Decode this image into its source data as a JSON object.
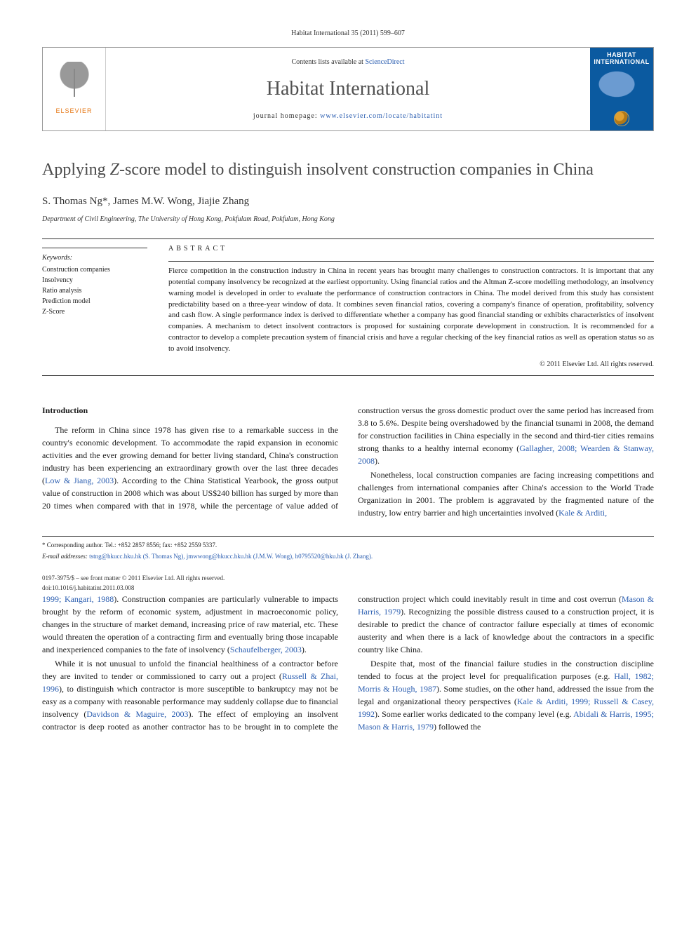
{
  "page_header": "Habitat International 35 (2011) 599–607",
  "banner": {
    "publisher": "ELSEVIER",
    "contents_prefix": "Contents lists available at ",
    "contents_link": "ScienceDirect",
    "journal_name": "Habitat International",
    "homepage_prefix": "journal homepage: ",
    "homepage_link": "www.elsevier.com/locate/habitatint",
    "cover_title": "HABITAT",
    "cover_subtitle": "INTERNATIONAL"
  },
  "title_pre": "Applying ",
  "title_italic": "Z",
  "title_post": "-score model to distinguish insolvent construction companies in China",
  "authors": "S. Thomas Ng*, James M.W. Wong, Jiajie Zhang",
  "affiliation": "Department of Civil Engineering, The University of Hong Kong, Pokfulam Road, Pokfulam, Hong Kong",
  "keywords_head": "Keywords:",
  "keywords": [
    "Construction companies",
    "Insolvency",
    "Ratio analysis",
    "Prediction model",
    "Z-Score"
  ],
  "abstract_head": "ABSTRACT",
  "abstract_text": "Fierce competition in the construction industry in China in recent years has brought many challenges to construction contractors. It is important that any potential company insolvency be recognized at the earliest opportunity. Using financial ratios and the Altman Z-score modelling methodology, an insolvency warning model is developed in order to evaluate the performance of construction contractors in China. The model derived from this study has consistent predictability based on a three-year window of data. It combines seven financial ratios, covering a company's finance of operation, profitability, solvency and cash flow. A single performance index is derived to differentiate whether a company has good financial standing or exhibits characteristics of insolvent companies. A mechanism to detect insolvent contractors is proposed for sustaining corporate development in construction. It is recommended for a contractor to develop a complete precaution system of financial crisis and have a regular checking of the key financial ratios as well as operation status so as to avoid insolvency.",
  "copyright": "© 2011 Elsevier Ltd. All rights reserved.",
  "intro_head": "Introduction",
  "para1_a": "The reform in China since 1978 has given rise to a remarkable success in the country's economic development. To accommodate the rapid expansion in economic activities and the ever growing demand for better living standard, China's construction industry has been experiencing an extraordinary growth over the last three decades (",
  "para1_c1": "Low & Jiang, 2003",
  "para1_b": "). According to the China Statistical Yearbook, the gross output value of construction in 2008 which was about US$240 billion has surged by more than 20 times when compared with that in 1978, while the percentage of value added of construction versus the gross domestic product over the same period has increased from 3.8 to 5.6%. Despite being overshadowed by the financial tsunami in 2008, the demand for construction facilities in China especially in the second and third-tier cities remains strong thanks to a healthy internal economy (",
  "para1_c2": "Gallagher, 2008; Wearden & Stanway, 2008",
  "para1_end": ").",
  "para2_a": "Nonetheless, local construction companies are facing increasing competitions and challenges from international companies after China's accession to the World Trade Organization in 2001. The problem is aggravated by the fragmented nature of the industry, low entry barrier and high uncertainties involved (",
  "para2_c1": "Kale & Arditi,",
  "para3_c0": "1999; Kangari, 1988",
  "para3_a": "). Construction companies are particularly vulnerable to impacts brought by the reform of economic system, adjustment in macroeconomic policy, changes in the structure of market demand, increasing price of raw material, etc. These would threaten the operation of a contracting firm and eventually bring those incapable and inexperienced companies to the fate of insolvency (",
  "para3_c1": "Schaufelberger, 2003",
  "para3_end": ").",
  "para4_a": "While it is not unusual to unfold the financial healthiness of a contractor before they are invited to tender or commissioned to carry out a project (",
  "para4_c1": "Russell & Zhai, 1996",
  "para4_b": "), to distinguish which contractor is more susceptible to bankruptcy may not be easy as a company with reasonable performance may suddenly collapse due to financial insolvency (",
  "para4_c2": "Davidson & Maguire, 2003",
  "para4_c": "). The effect of employing an insolvent contractor is deep rooted as another contractor has to be brought in to complete the construction project which could inevitably result in time and cost overrun (",
  "para4_c3": "Mason & Harris, 1979",
  "para4_d": "). Recognizing the possible distress caused to a construction project, it is desirable to predict the chance of contractor failure especially at times of economic austerity and when there is a lack of knowledge about the contractors in a specific country like China.",
  "para5_a": "Despite that, most of the financial failure studies in the construction discipline tended to focus at the project level for prequalification purposes (e.g. ",
  "para5_c1": "Hall, 1982; Morris & Hough, 1987",
  "para5_b": "). Some studies, on the other hand, addressed the issue from the legal and organizational theory perspectives (",
  "para5_c2": "Kale & Arditi, 1999; Russell & Casey, 1992",
  "para5_c": "). Some earlier works dedicated to the company level (e.g. ",
  "para5_c3": "Abidali & Harris, 1995; Mason & Harris, 1979",
  "para5_d": ") followed the",
  "footnote_corr": "* Corresponding author. Tel.: +852 2857 8556; fax: +852 2559 5337.",
  "footnote_email_label": "E-mail addresses: ",
  "footnote_emails": "tstng@hkucc.hku.hk (S. Thomas Ng), jmwwong@hkucc.hku.hk (J.M.W. Wong), h0795520@hku.hk (J. Zhang).",
  "bottom_line1": "0197-3975/$ – see front matter © 2011 Elsevier Ltd. All rights reserved.",
  "bottom_line2": "doi:10.1016/j.habitatint.2011.03.008"
}
